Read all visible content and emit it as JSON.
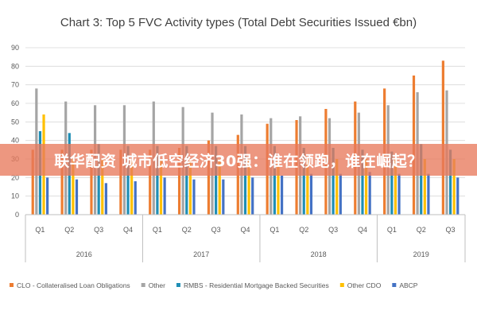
{
  "colors": {
    "clo": "#ED7D31",
    "other": "#A5A5A5",
    "rmbs": "#1F8EB5",
    "other_cdo": "#FFC000",
    "abcp": "#4472C4",
    "banner_bg": "#E87A5C"
  },
  "banner": {
    "text": "联华配资 城市低空经济30强：谁在领跑，谁在崛起？"
  },
  "chart_data": {
    "type": "bar",
    "title": "Chart 3: Top 5 FVC Activity types (Total Debt Securities Issued €bn)",
    "xlabel": "",
    "ylabel": "",
    "ylim": [
      0,
      90
    ],
    "yticks": [
      "0",
      "10",
      "20",
      "30",
      "40",
      "50",
      "60",
      "70",
      "80",
      "90"
    ],
    "grid": true,
    "legend_position": "bottom",
    "categories": [
      "Q1",
      "Q2",
      "Q3",
      "Q4",
      "Q1",
      "Q2",
      "Q3",
      "Q4",
      "Q1",
      "Q2",
      "Q3",
      "Q4",
      "Q1",
      "Q2",
      "Q3"
    ],
    "groups": [
      {
        "label": "2016",
        "count": 4
      },
      {
        "label": "2017",
        "count": 4
      },
      {
        "label": "2018",
        "count": 4
      },
      {
        "label": "2019",
        "count": 3
      }
    ],
    "series": [
      {
        "name": "CLO - Collateralised Loan Obligations",
        "color": "#ED7D31",
        "values": [
          35,
          35,
          35,
          35,
          35,
          36,
          40,
          43,
          49,
          51,
          57,
          61,
          68,
          75,
          83
        ]
      },
      {
        "name": "Other",
        "color": "#A5A5A5",
        "values": [
          68,
          61,
          59,
          59,
          61,
          58,
          55,
          54,
          52,
          53,
          52,
          55,
          59,
          66,
          67
        ]
      },
      {
        "name": "RMBS - Residential Mortgage Backed Securities",
        "color": "#1F8EB5",
        "values": [
          45,
          44,
          38,
          37,
          37,
          37,
          37,
          37,
          37,
          36,
          36,
          35,
          34,
          38,
          35
        ]
      },
      {
        "name": "Other CDO",
        "color": "#FFC000",
        "values": [
          54,
          30,
          30,
          30,
          30,
          30,
          30,
          30,
          30,
          30,
          30,
          30,
          30,
          30,
          30
        ]
      },
      {
        "name": "ABCP",
        "color": "#4472C4",
        "values": [
          20,
          19,
          17,
          18,
          20,
          19,
          19,
          20,
          21,
          22,
          22,
          23,
          22,
          22,
          20
        ]
      }
    ]
  }
}
